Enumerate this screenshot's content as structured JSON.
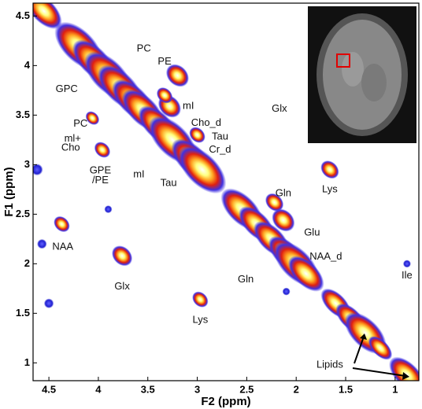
{
  "chart_data": {
    "type": "spectrum2d",
    "x_label": "F2 (ppm)",
    "y_label": "F1 (ppm)",
    "xlim": [
      4.66,
      0.76
    ],
    "ylim": [
      0.82,
      4.63
    ],
    "xticks": [
      4.5,
      4,
      3.5,
      3,
      2.5,
      2,
      1.5,
      1
    ],
    "yticks": [
      4.5,
      4,
      3.5,
      3,
      2.5,
      2,
      1.5,
      1
    ],
    "diagonal_peaks": {
      "x": [
        4.55,
        4.2,
        4.05,
        3.9,
        3.78,
        3.65,
        3.55,
        3.4,
        3.25,
        3.05,
        2.95,
        2.55,
        2.4,
        2.25,
        2.1,
        2.0,
        1.9,
        1.6,
        1.45,
        1.3,
        1.15,
        0.88
      ],
      "y": [
        4.55,
        4.2,
        4.05,
        3.9,
        3.78,
        3.65,
        3.55,
        3.4,
        3.25,
        3.05,
        2.95,
        2.55,
        2.4,
        2.25,
        2.1,
        2.0,
        1.9,
        1.6,
        1.45,
        1.3,
        1.15,
        0.88
      ],
      "size": [
        0.12,
        0.16,
        0.14,
        0.16,
        0.15,
        0.14,
        0.14,
        0.13,
        0.16,
        0.14,
        0.16,
        0.14,
        0.12,
        0.12,
        0.12,
        0.15,
        0.12,
        0.1,
        0.1,
        0.14,
        0.08,
        0.12
      ]
    },
    "cross_peaks": {
      "x": [
        4.37,
        3.76,
        2.97,
        1.66,
        3.2,
        3.28,
        3.96,
        4.06,
        2.13,
        3.33,
        3.0,
        2.22
      ],
      "y": [
        2.4,
        2.08,
        1.64,
        2.95,
        3.9,
        3.59,
        3.15,
        3.47,
        2.44,
        3.7,
        3.3,
        2.62
      ],
      "size": [
        0.07,
        0.09,
        0.07,
        0.08,
        0.1,
        0.1,
        0.07,
        0.06,
        0.1,
        0.07,
        0.07,
        0.08
      ]
    },
    "weak_peaks": {
      "x": [
        4.57,
        4.62,
        1.83,
        0.88,
        3.9,
        2.1,
        4.5
      ],
      "y": [
        2.2,
        2.95,
        3.7,
        2.0,
        2.55,
        1.72,
        1.6
      ],
      "size": [
        0.05,
        0.06,
        0.04,
        0.04,
        0.04,
        0.04,
        0.05
      ]
    },
    "annotations": [
      {
        "text": "PC",
        "x": 3.54,
        "y": 4.17
      },
      {
        "text": "PE",
        "x": 3.33,
        "y": 4.04
      },
      {
        "text": "GPC",
        "x": 4.32,
        "y": 3.76
      },
      {
        "text": "mI",
        "x": 3.09,
        "y": 3.59
      },
      {
        "text": "PC",
        "x": 4.18,
        "y": 3.41
      },
      {
        "text": "Cho_d",
        "x": 2.91,
        "y": 3.42
      },
      {
        "text": "ml+",
        "x": 4.26,
        "y": 3.26
      },
      {
        "text": "Cho",
        "x": 4.28,
        "y": 3.17
      },
      {
        "text": "Tau",
        "x": 2.77,
        "y": 3.28
      },
      {
        "text": "Cr_d",
        "x": 2.77,
        "y": 3.15
      },
      {
        "text": "Glx",
        "x": 2.17,
        "y": 3.56
      },
      {
        "text": "GPE",
        "x": 3.98,
        "y": 2.94
      },
      {
        "text": "/PE",
        "x": 3.98,
        "y": 2.84
      },
      {
        "text": "mI",
        "x": 3.59,
        "y": 2.9
      },
      {
        "text": "Tau",
        "x": 3.29,
        "y": 2.81
      },
      {
        "text": "Gln",
        "x": 2.13,
        "y": 2.71
      },
      {
        "text": "Lys",
        "x": 1.66,
        "y": 2.75
      },
      {
        "text": "Glu",
        "x": 1.84,
        "y": 2.31
      },
      {
        "text": "NAA",
        "x": 4.36,
        "y": 2.17
      },
      {
        "text": "NAA_d",
        "x": 1.7,
        "y": 2.07
      },
      {
        "text": "Gln",
        "x": 2.51,
        "y": 1.84
      },
      {
        "text": "Glx",
        "x": 3.76,
        "y": 1.77
      },
      {
        "text": "Ile",
        "x": 0.88,
        "y": 1.88
      },
      {
        "text": "Lys",
        "x": 2.97,
        "y": 1.43
      },
      {
        "text": "Lipids",
        "x": 1.66,
        "y": 0.98
      }
    ]
  }
}
